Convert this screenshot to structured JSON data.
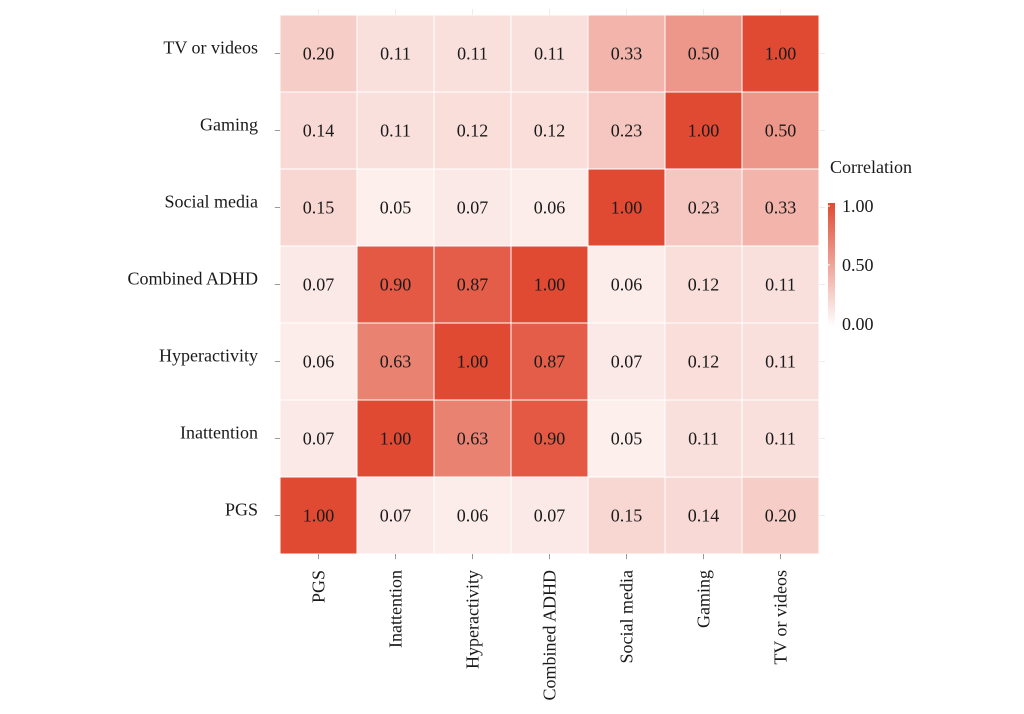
{
  "chart_data": {
    "type": "heatmap",
    "title": "",
    "x_categories": [
      "PGS",
      "Inattention",
      "Hyperactivity",
      "Combined ADHD",
      "Social media",
      "Gaming",
      "TV or videos"
    ],
    "y_categories": [
      "PGS",
      "Inattention",
      "Hyperactivity",
      "Combined ADHD",
      "Social media",
      "Gaming",
      "TV or videos"
    ],
    "values": [
      [
        1.0,
        0.07,
        0.06,
        0.07,
        0.15,
        0.14,
        0.2
      ],
      [
        0.07,
        1.0,
        0.63,
        0.9,
        0.05,
        0.11,
        0.11
      ],
      [
        0.06,
        0.63,
        1.0,
        0.87,
        0.07,
        0.12,
        0.11
      ],
      [
        0.07,
        0.9,
        0.87,
        1.0,
        0.06,
        0.12,
        0.11
      ],
      [
        0.15,
        0.05,
        0.07,
        0.06,
        1.0,
        0.23,
        0.33
      ],
      [
        0.14,
        0.11,
        0.12,
        0.12,
        0.23,
        1.0,
        0.5
      ],
      [
        0.2,
        0.11,
        0.11,
        0.11,
        0.33,
        0.5,
        1.0
      ]
    ],
    "value_labels": [
      [
        "1.00",
        "0.07",
        "0.06",
        "0.07",
        "0.15",
        "0.14",
        "0.20"
      ],
      [
        "0.07",
        "1.00",
        "0.63",
        "0.90",
        "0.05",
        "0.11",
        "0.11"
      ],
      [
        "0.06",
        "0.63",
        "1.00",
        "0.87",
        "0.07",
        "0.12",
        "0.11"
      ],
      [
        "0.07",
        "0.90",
        "0.87",
        "1.00",
        "0.06",
        "0.12",
        "0.11"
      ],
      [
        "0.15",
        "0.05",
        "0.07",
        "0.06",
        "1.00",
        "0.23",
        "0.33"
      ],
      [
        "0.14",
        "0.11",
        "0.12",
        "0.12",
        "0.23",
        "1.00",
        "0.50"
      ],
      [
        "0.20",
        "0.11",
        "0.11",
        "0.11",
        "0.33",
        "0.50",
        "1.00"
      ]
    ],
    "color_scale": {
      "low": "#ffffff",
      "high": "#e04a33",
      "range": [
        0,
        1
      ]
    },
    "legend": {
      "title": "Correlation",
      "ticks": [
        1.0,
        0.5,
        0.0
      ],
      "tick_labels": [
        "1.00",
        "0.50",
        "0.00"
      ],
      "placement": "right"
    }
  }
}
